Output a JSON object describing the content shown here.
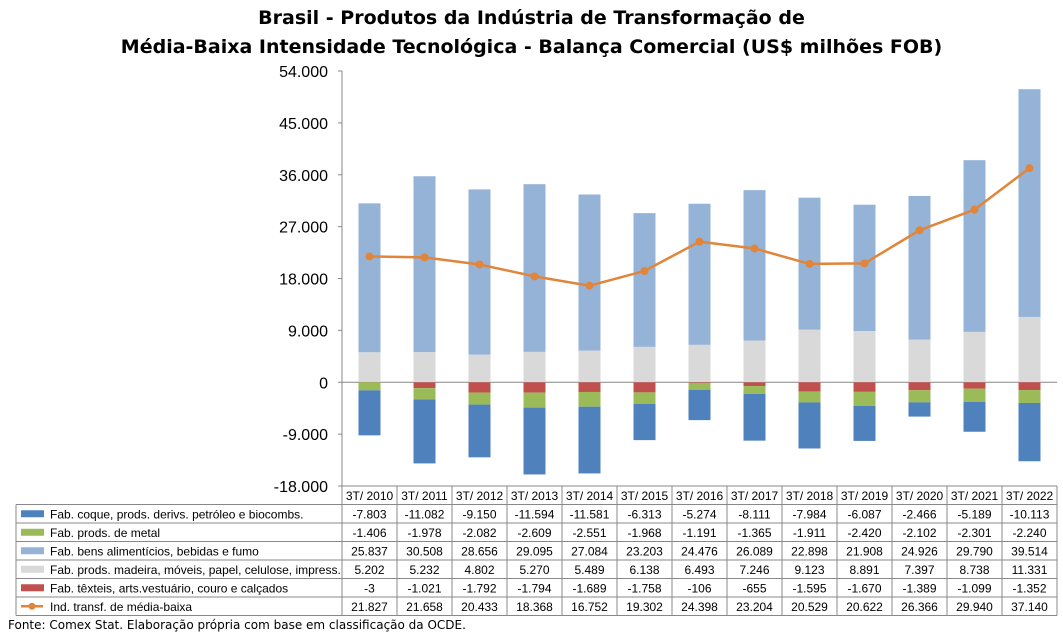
{
  "title": {
    "line1": "Brasil - Produtos da Indústria de Transformação de",
    "line2": "Média-Baixa Intensidade Tecnológica - Balança Comercial (US$ milhões FOB)"
  },
  "source": "Fonte: Comex Stat. Elaboração própria com base em classificação da OCDE.",
  "colors": {
    "coque": "#4F81BD",
    "metal": "#9BBB59",
    "alimentos": "#95B3D7",
    "madeira": "#D9D9D9",
    "texteis": "#C0504D",
    "total": "#E0853A"
  },
  "chart_data": {
    "type": "bar",
    "stacked": true,
    "ylim": [
      -18000,
      54000
    ],
    "yticks": [
      -18000,
      -9000,
      0,
      9000,
      18000,
      27000,
      36000,
      45000,
      54000
    ],
    "ytick_labels": [
      "-18.000",
      "-9.000",
      "0",
      "9.000",
      "18.000",
      "27.000",
      "36.000",
      "45.000",
      "54.000"
    ],
    "grid": false,
    "legend": "table-below",
    "categories": [
      "3T/ 2010",
      "3T/ 2011",
      "3T/ 2012",
      "3T/ 2013",
      "3T/ 2014",
      "3T/ 2015",
      "3T/ 2016",
      "3T/ 2017",
      "3T/ 2018",
      "3T/ 2019",
      "3T/ 2020",
      "3T/ 2021",
      "3T/ 2022"
    ],
    "series": [
      {
        "name": "Fab. coque, prods. derivs. petróleo e biocombs.",
        "color_key": "coque",
        "type": "bar",
        "values": [
          -7803,
          -11082,
          -9150,
          -11594,
          -11581,
          -6313,
          -5274,
          -8111,
          -7984,
          -6087,
          -2466,
          -5189,
          -10113
        ],
        "labels": [
          "-7.803",
          "-11.082",
          "-9.150",
          "-11.594",
          "-11.581",
          "-6.313",
          "-5.274",
          "-8.111",
          "-7.984",
          "-6.087",
          "-2.466",
          "-5.189",
          "-10.113"
        ]
      },
      {
        "name": "Fab. prods. de metal",
        "color_key": "metal",
        "type": "bar",
        "values": [
          -1406,
          -1978,
          -2082,
          -2609,
          -2551,
          -1968,
          -1191,
          -1365,
          -1911,
          -2420,
          -2102,
          -2301,
          -2240
        ],
        "labels": [
          "-1.406",
          "-1.978",
          "-2.082",
          "-2.609",
          "-2.551",
          "-1.968",
          "-1.191",
          "-1.365",
          "-1.911",
          "-2.420",
          "-2.102",
          "-2.301",
          "-2.240"
        ]
      },
      {
        "name": "Fab. bens alimentícios, bebidas e fumo",
        "color_key": "alimentos",
        "type": "bar",
        "values": [
          25837,
          30508,
          28656,
          29095,
          27084,
          23203,
          24476,
          26089,
          22898,
          21908,
          24926,
          29790,
          39514
        ],
        "labels": [
          "25.837",
          "30.508",
          "28.656",
          "29.095",
          "27.084",
          "23.203",
          "24.476",
          "26.089",
          "22.898",
          "21.908",
          "24.926",
          "29.790",
          "39.514"
        ]
      },
      {
        "name": "Fab. prods. madeira, móveis, papel, celulose, impress.",
        "color_key": "madeira",
        "type": "bar",
        "values": [
          5202,
          5232,
          4802,
          5270,
          5489,
          6138,
          6493,
          7246,
          9123,
          8891,
          7397,
          8738,
          11331
        ],
        "labels": [
          "5.202",
          "5.232",
          "4.802",
          "5.270",
          "5.489",
          "6.138",
          "6.493",
          "7.246",
          "9.123",
          "8.891",
          "7.397",
          "8.738",
          "11.331"
        ]
      },
      {
        "name": "Fab. têxteis, arts.vestuário, couro e calçados",
        "color_key": "texteis",
        "type": "bar",
        "values": [
          -3,
          -1021,
          -1792,
          -1794,
          -1689,
          -1758,
          -106,
          -655,
          -1595,
          -1670,
          -1389,
          -1099,
          -1352
        ],
        "labels": [
          "-3",
          "-1.021",
          "-1.792",
          "-1.794",
          "-1.689",
          "-1.758",
          "-106",
          "-655",
          "-1.595",
          "-1.670",
          "-1.389",
          "-1.099",
          "-1.352"
        ]
      },
      {
        "name": "Ind. transf. de média-baixa",
        "color_key": "total",
        "type": "line",
        "values": [
          21827,
          21658,
          20433,
          18368,
          16752,
          19302,
          24398,
          23204,
          20529,
          20622,
          26366,
          29940,
          37140
        ],
        "labels": [
          "21.827",
          "21.658",
          "20.433",
          "18.368",
          "16.752",
          "19.302",
          "24.398",
          "23.204",
          "20.529",
          "20.622",
          "26.366",
          "29.940",
          "37.140"
        ]
      }
    ]
  }
}
